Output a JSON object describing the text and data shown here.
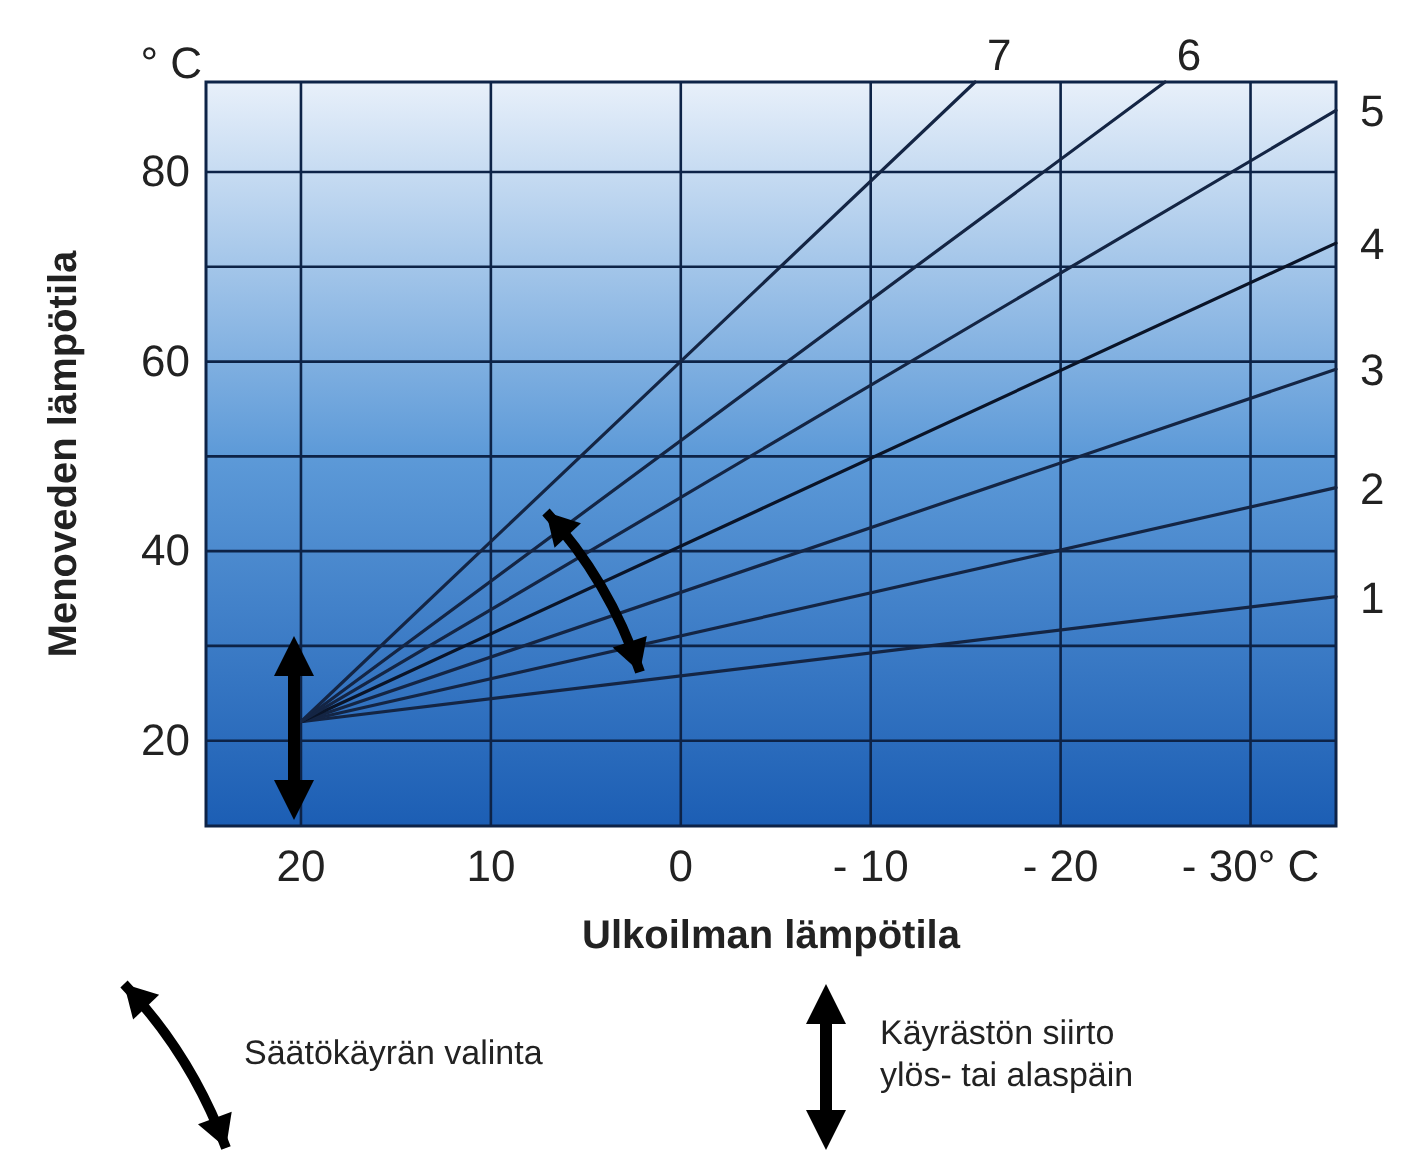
{
  "chart_data": {
    "type": "line",
    "xlabel": "Ulkoilman lämpötila",
    "ylabel": "Menoveden lämpötila",
    "xlim": [
      25,
      -34.5
    ],
    "ylim": [
      11,
      89.5
    ],
    "xticks": [
      20,
      10,
      0,
      {
        "value": -10,
        "label": "- 10"
      },
      {
        "value": -20,
        "label": "- 20"
      },
      {
        "value": -30,
        "label": "- 30° C"
      }
    ],
    "yticks": [
      20,
      {
        "value": 30,
        "label": null
      },
      40,
      {
        "value": 50,
        "label": null
      },
      60,
      {
        "value": 70,
        "label": null
      },
      80
    ],
    "grid": true,
    "marker": "none",
    "line_style": "solid",
    "series": [
      {
        "name": "1",
        "color": "#142544",
        "x": [
          20,
          -34.5
        ],
        "values": [
          22,
          35.2
        ]
      },
      {
        "name": "2",
        "color": "#142544",
        "x": [
          20,
          -34.5
        ],
        "values": [
          22,
          46.7
        ]
      },
      {
        "name": "3",
        "color": "#142544",
        "x": [
          20,
          -34.5
        ],
        "values": [
          22,
          59.2
        ]
      },
      {
        "name": "4",
        "color": "#0a1428",
        "x": [
          20,
          -34.5
        ],
        "values": [
          22,
          72.5
        ]
      },
      {
        "name": "5",
        "color": "#142544",
        "x": [
          20,
          -34.5
        ],
        "values": [
          22,
          86.5
        ]
      },
      {
        "name": "6",
        "color": "#142544",
        "x": [
          20,
          -25.5
        ],
        "values": [
          22,
          89.5
        ]
      },
      {
        "name": "7",
        "color": "#142544",
        "x": [
          20,
          -15.5
        ],
        "values": [
          22,
          89.5
        ]
      }
    ],
    "annotations": [
      "° C",
      "Säätökäyrän valinta",
      "Käyrästön siirto\nylös- tai alaspäin"
    ]
  }
}
